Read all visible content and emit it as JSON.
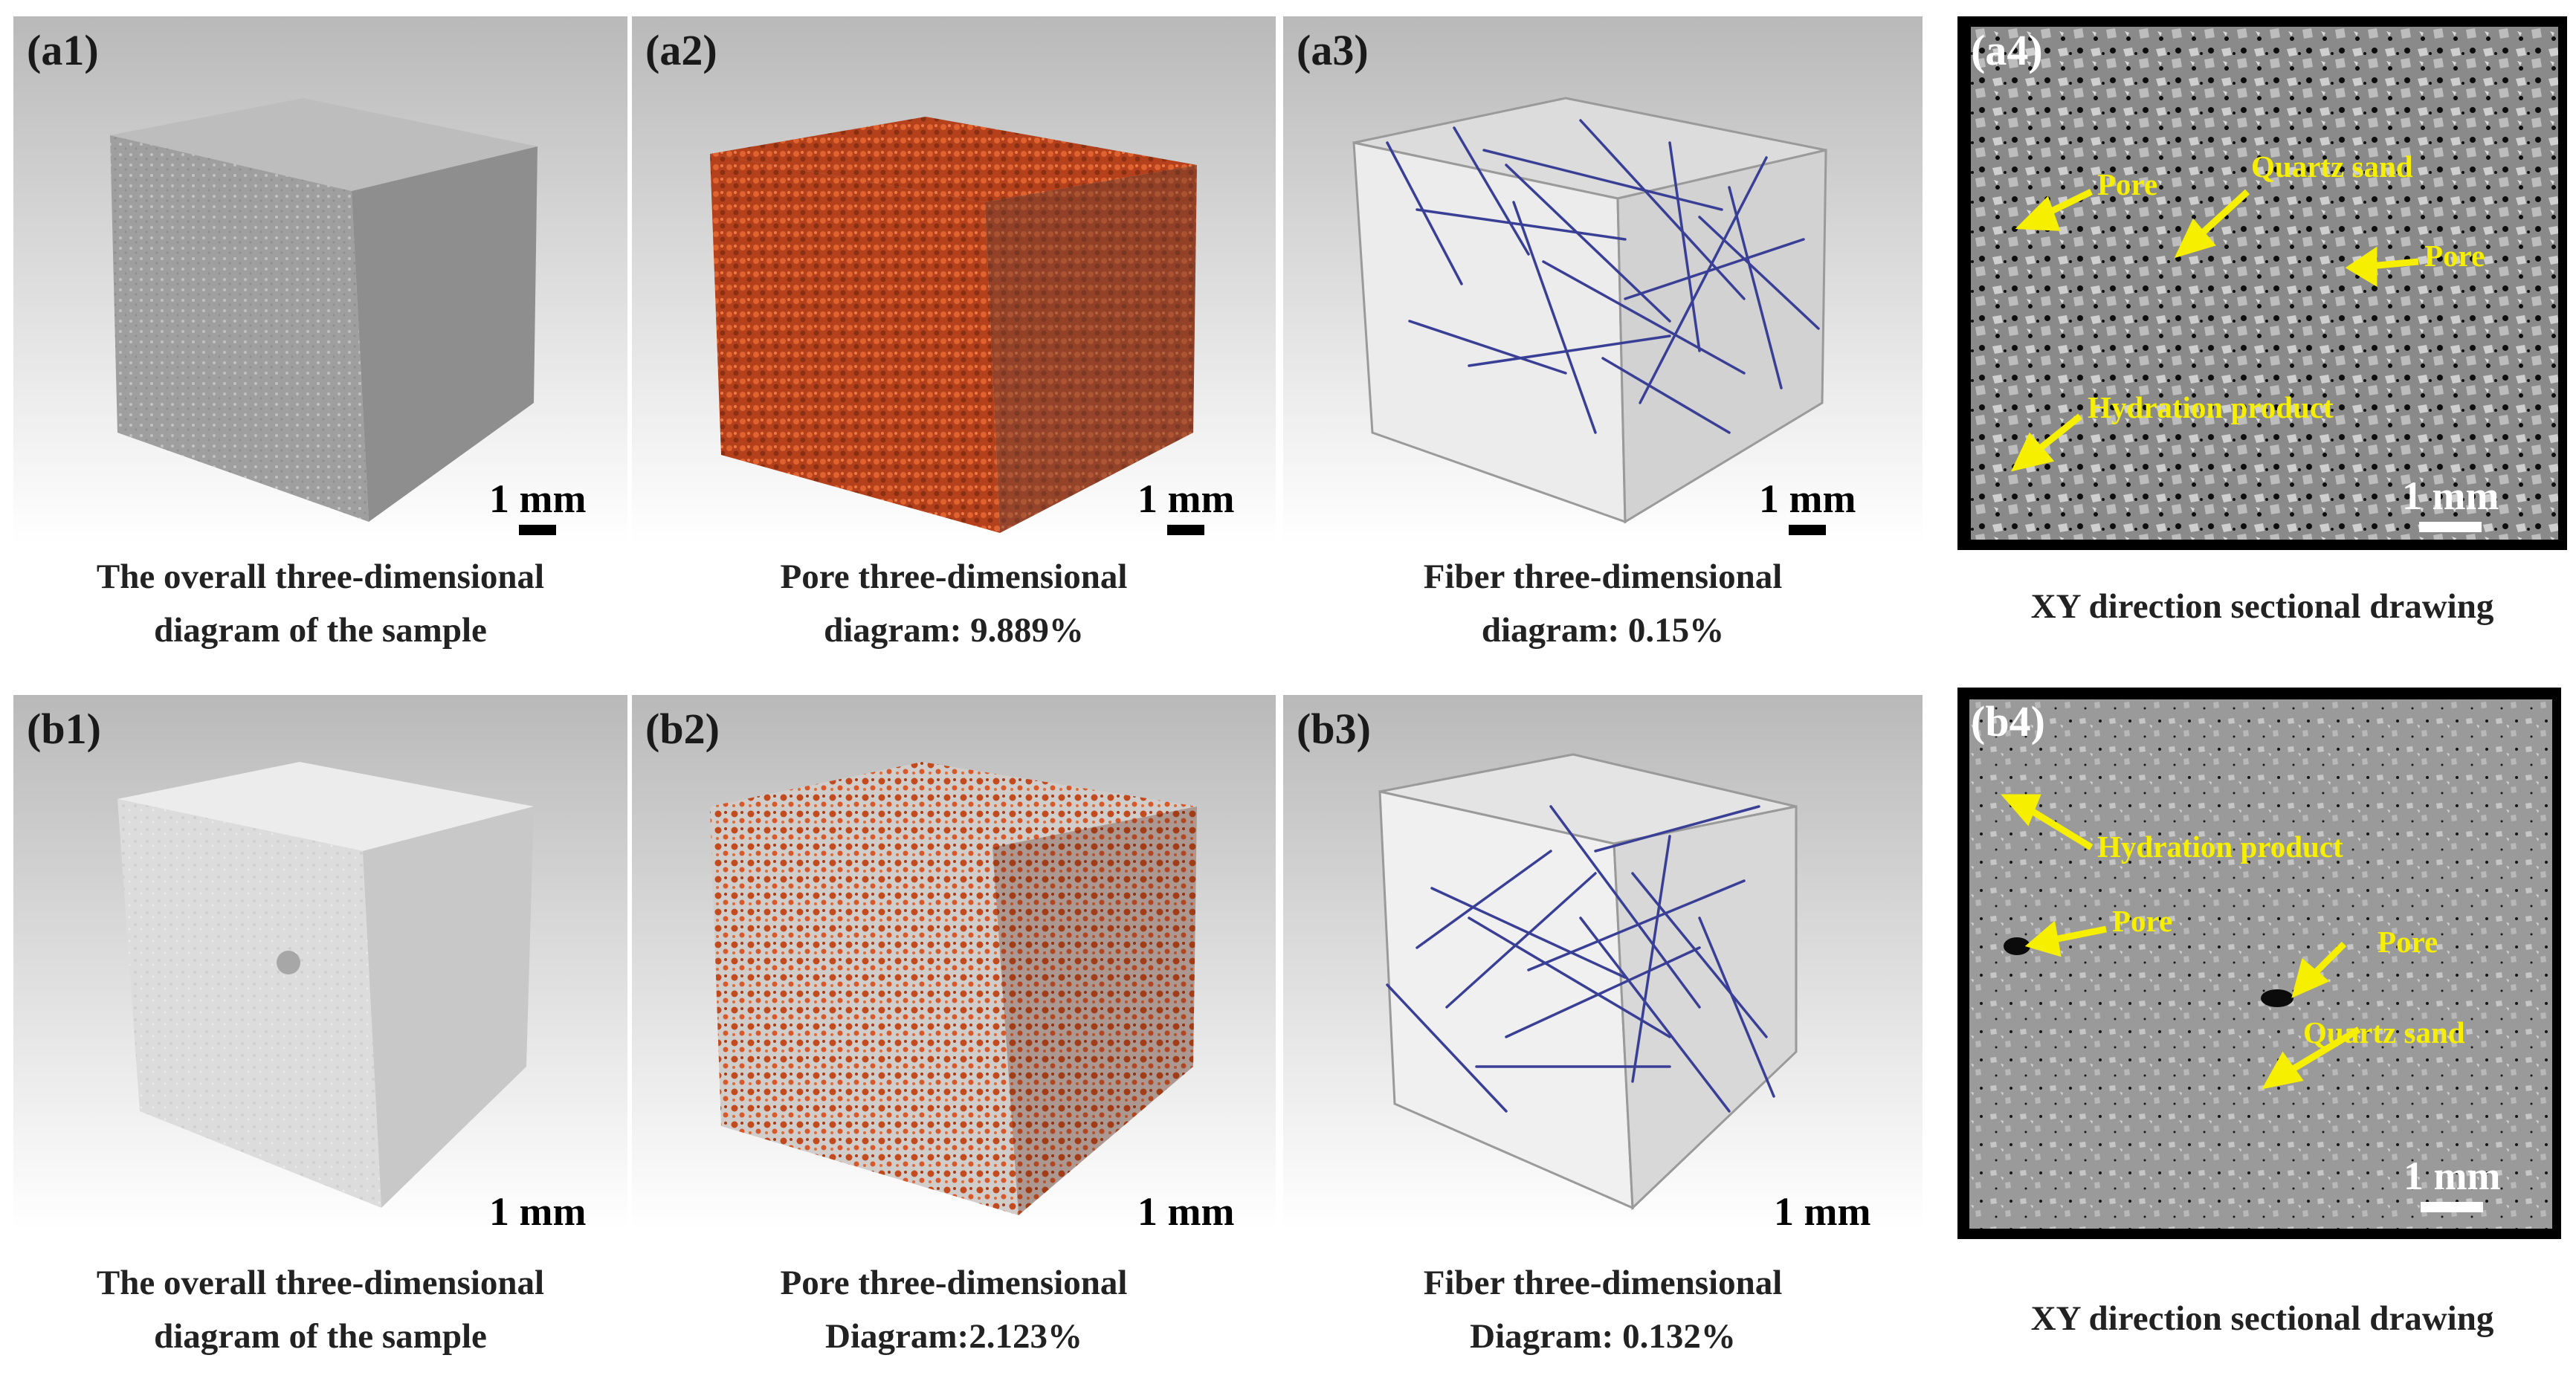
{
  "panels": {
    "a1": {
      "tag": "(a1)",
      "scale": "1 mm"
    },
    "a2": {
      "tag": "(a2)",
      "scale": "1 mm"
    },
    "a3": {
      "tag": "(a3)",
      "scale": "1 mm"
    },
    "a4": {
      "tag": "(a4)",
      "scale": "1 mm",
      "labels": {
        "pore_1": "Pore",
        "quartz": "Quartz sand",
        "pore_2": "Pore",
        "hydration": "Hydration product"
      }
    },
    "b1": {
      "tag": "(b1)",
      "scale": "1 mm"
    },
    "b2": {
      "tag": "(b2)",
      "scale": "1 mm"
    },
    "b3": {
      "tag": "(b3)",
      "scale": "1 mm"
    },
    "b4": {
      "tag": "(b4)",
      "scale": "1 mm",
      "labels": {
        "hydration": "Hydration product",
        "pore_1": "Pore",
        "pore_2": "Pore",
        "quartz": "Quartz sand"
      }
    }
  },
  "captions": {
    "a1": [
      "The overall three-dimensional",
      "diagram of the sample"
    ],
    "a2": [
      "Pore three-dimensional",
      "diagram: 9.889%"
    ],
    "a3": [
      "Fiber three-dimensional",
      "diagram: 0.15%"
    ],
    "a4": [
      "XY direction sectional drawing"
    ],
    "b1": [
      "The overall three-dimensional",
      "diagram of the sample"
    ],
    "b2": [
      "Pore three-dimensional",
      "Diagram:2.123%"
    ],
    "b3": [
      "Fiber three-dimensional",
      "Diagram: 0.132%"
    ],
    "b4": [
      "XY direction sectional drawing"
    ]
  },
  "colors": {
    "annotation": "#f6ef00",
    "pore_render": "#c8461e",
    "fiber": "#3a3f96",
    "cube_gray": "#a9a9a9",
    "cube_light": "#e2e2e2"
  }
}
